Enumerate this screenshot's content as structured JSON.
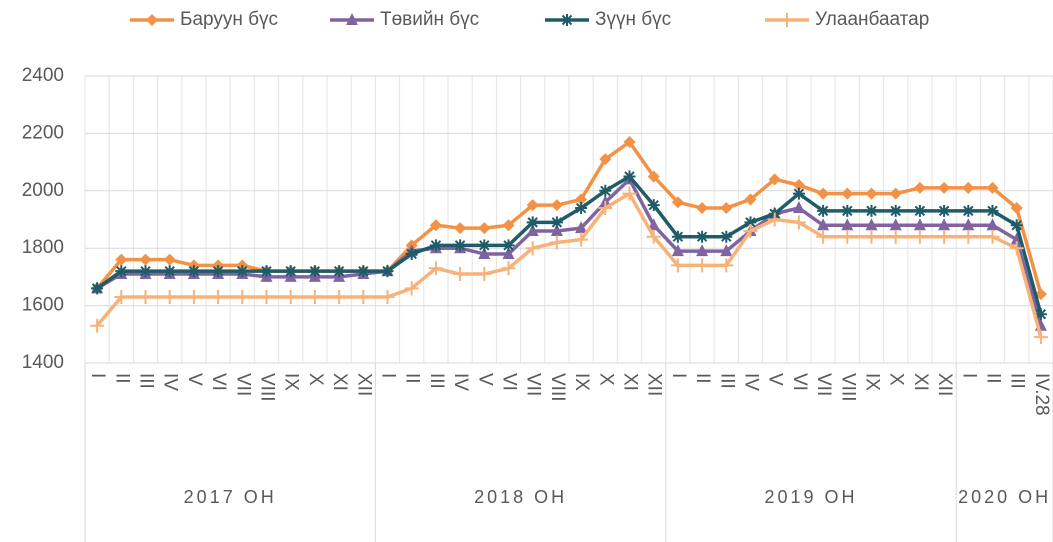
{
  "chart_data": {
    "type": "line",
    "category_groups": [
      {
        "label": "2017 ОН",
        "categories": [
          "I",
          "II",
          "III",
          "IV",
          "V",
          "VI",
          "VII",
          "VIII",
          "IX",
          "X",
          "XI",
          "XII"
        ]
      },
      {
        "label": "2018 ОН",
        "categories": [
          "I",
          "II",
          "III",
          "IV",
          "V",
          "VI",
          "VII",
          "VIII",
          "IX",
          "X",
          "XI",
          "XII"
        ]
      },
      {
        "label": "2019 ОН",
        "categories": [
          "I",
          "II",
          "III",
          "IV",
          "V",
          "VI",
          "VII",
          "VIII",
          "IX",
          "X",
          "XI",
          "XII"
        ]
      },
      {
        "label": "2020 ОН",
        "categories": [
          "I",
          "II",
          "III",
          "IV.28"
        ]
      }
    ],
    "series": [
      {
        "name": "Баруун бүс",
        "color": "#f39244",
        "marker": "diamond",
        "values": [
          1660,
          1760,
          1760,
          1760,
          1740,
          1740,
          1740,
          1720,
          1720,
          1720,
          1720,
          1720,
          1720,
          1810,
          1880,
          1870,
          1870,
          1880,
          1950,
          1950,
          1970,
          2110,
          2170,
          2050,
          1960,
          1940,
          1940,
          1970,
          2040,
          2020,
          1990,
          1990,
          1990,
          1990,
          2010,
          2010,
          2010,
          2010,
          1940,
          1640
        ]
      },
      {
        "name": "Төвийн бүс",
        "color": "#8064a2",
        "marker": "triangle",
        "values": [
          1660,
          1710,
          1710,
          1710,
          1710,
          1710,
          1710,
          1700,
          1700,
          1700,
          1700,
          1710,
          1720,
          1790,
          1800,
          1800,
          1780,
          1780,
          1860,
          1860,
          1870,
          1960,
          2040,
          1880,
          1790,
          1790,
          1790,
          1860,
          1920,
          1940,
          1880,
          1880,
          1880,
          1880,
          1880,
          1880,
          1880,
          1880,
          1830,
          1530
        ]
      },
      {
        "name": "Зүүн бүс",
        "color": "#1f5c68",
        "marker": "asterisk",
        "values": [
          1660,
          1720,
          1720,
          1720,
          1720,
          1720,
          1720,
          1720,
          1720,
          1720,
          1720,
          1720,
          1720,
          1780,
          1810,
          1810,
          1810,
          1810,
          1890,
          1890,
          1940,
          2000,
          2050,
          1950,
          1840,
          1840,
          1840,
          1890,
          1920,
          1990,
          1930,
          1930,
          1930,
          1930,
          1930,
          1930,
          1930,
          1930,
          1880,
          1570
        ]
      },
      {
        "name": "Улаанбаатар",
        "color": "#f7b27a",
        "marker": "plus",
        "values": [
          1530,
          1630,
          1630,
          1630,
          1630,
          1630,
          1630,
          1630,
          1630,
          1630,
          1630,
          1630,
          1630,
          1660,
          1730,
          1710,
          1710,
          1730,
          1800,
          1820,
          1830,
          1940,
          1990,
          1840,
          1740,
          1740,
          1740,
          1860,
          1900,
          1890,
          1840,
          1840,
          1840,
          1840,
          1840,
          1840,
          1840,
          1840,
          1800,
          1490
        ]
      }
    ],
    "ylim": [
      1400,
      2400
    ],
    "yticks": [
      1400,
      1600,
      1800,
      2000,
      2200,
      2400
    ],
    "grid": true,
    "legend": "top"
  }
}
